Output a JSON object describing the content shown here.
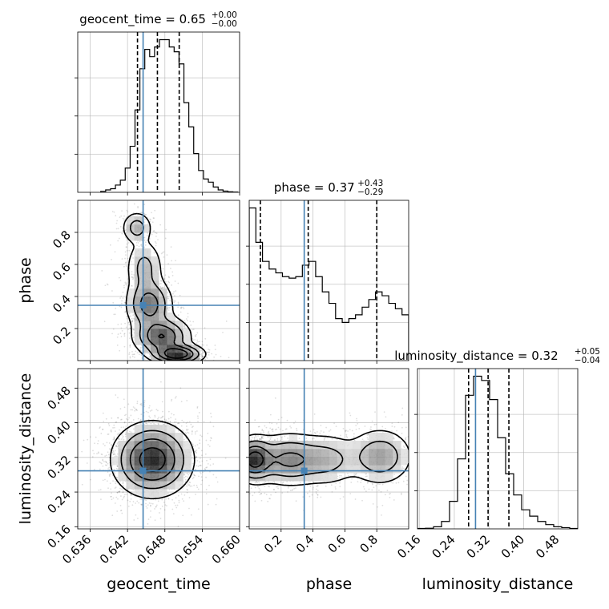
{
  "chart_data": {
    "type": "corner",
    "parameters": [
      {
        "name": "geocent_time",
        "axis_label": "geocent_time",
        "range": [
          0.634,
          0.66
        ],
        "truth": 0.6445,
        "title": {
          "main": "geocent_time = 0.65",
          "sup": "+0.00",
          "sub": "−0.00"
        },
        "quantiles": [
          0.6436,
          0.6468,
          0.6503
        ],
        "ticks": [
          0.636,
          0.642,
          0.648,
          0.654,
          0.66
        ],
        "tick_labels": [
          "0.636",
          "0.642",
          "0.648",
          "0.654",
          "0.660"
        ],
        "hist_edges_range": [
          0.6377,
          0.6597
        ],
        "hist": [
          0.4,
          1.0,
          1.5,
          3.0,
          5.0,
          10.0,
          19.0,
          34.0,
          51.0,
          59.0,
          56.0,
          60.0,
          63.0,
          63.0,
          60.0,
          58.0,
          53.0,
          37.0,
          27.0,
          16.0,
          9.0,
          5.5,
          4.2,
          2.2,
          1.0,
          0.5,
          0.2,
          0.1
        ]
      },
      {
        "name": "phase",
        "axis_label": "phase",
        "range": [
          0.0,
          1.0
        ],
        "truth": 0.345,
        "title": {
          "main": "phase = 0.37",
          "sup": "+0.43",
          "sub": "−0.29"
        },
        "quantiles": [
          0.07,
          0.37,
          0.8
        ],
        "ticks": [
          0.2,
          0.4,
          0.6,
          0.8
        ],
        "tick_labels": [
          "0.2",
          "0.4",
          "0.6",
          "0.8"
        ],
        "hist_edges_range": [
          0.0,
          1.0
        ],
        "hist": [
          2.0,
          1.55,
          1.3,
          1.2,
          1.15,
          1.1,
          1.08,
          1.1,
          1.25,
          1.3,
          1.1,
          0.9,
          0.75,
          0.55,
          0.5,
          0.55,
          0.6,
          0.7,
          0.8,
          0.9,
          0.85,
          0.75,
          0.68,
          0.6
        ]
      },
      {
        "name": "luminosity_distance",
        "axis_label": "luminosity_distance",
        "range": [
          0.155,
          0.525
        ],
        "truth": 0.289,
        "title": {
          "main": "luminosity_distance = 0.32",
          "sup": "+0.05",
          "sub": "−0.04"
        },
        "quantiles": [
          0.273,
          0.318,
          0.366
        ],
        "ticks": [
          0.16,
          0.24,
          0.32,
          0.4,
          0.48
        ],
        "tick_labels": [
          "0.16",
          "0.24",
          "0.32",
          "0.40",
          "0.48"
        ],
        "hist_edges_range": [
          0.155,
          0.525
        ],
        "hist": [
          0.2,
          0.3,
          1.0,
          3.5,
          13.0,
          33.0,
          63.0,
          72.0,
          70.0,
          61.0,
          43.0,
          26.0,
          16.0,
          9.0,
          6.0,
          3.5,
          2.0,
          1.0,
          0.6,
          0.2
        ]
      }
    ],
    "pairs": [
      {
        "x": 0,
        "y": 1,
        "density_blobs": [
          {
            "cx": 0.6435,
            "cy": 0.83,
            "sx": 0.0012,
            "sy": 0.05,
            "w": 0.25
          },
          {
            "cx": 0.6447,
            "cy": 0.58,
            "sx": 0.0015,
            "sy": 0.09,
            "w": 0.22
          },
          {
            "cx": 0.6455,
            "cy": 0.35,
            "sx": 0.0018,
            "sy": 0.08,
            "w": 0.45
          },
          {
            "cx": 0.6475,
            "cy": 0.15,
            "sx": 0.0022,
            "sy": 0.06,
            "w": 0.55
          },
          {
            "cx": 0.65,
            "cy": 0.04,
            "sx": 0.002,
            "sy": 0.03,
            "w": 0.75
          }
        ]
      },
      {
        "x": 0,
        "y": 2,
        "density_blobs": [
          {
            "cx": 0.646,
            "cy": 0.315,
            "sx": 0.003,
            "sy": 0.04,
            "w": 1.0
          }
        ]
      },
      {
        "x": 1,
        "y": 2,
        "density_blobs": [
          {
            "cx": 0.03,
            "cy": 0.315,
            "sx": 0.06,
            "sy": 0.025,
            "w": 0.9
          },
          {
            "cx": 0.25,
            "cy": 0.315,
            "sx": 0.12,
            "sy": 0.03,
            "w": 0.55
          },
          {
            "cx": 0.5,
            "cy": 0.315,
            "sx": 0.1,
            "sy": 0.03,
            "w": 0.3
          },
          {
            "cx": 0.82,
            "cy": 0.322,
            "sx": 0.1,
            "sy": 0.032,
            "w": 0.45
          }
        ]
      }
    ],
    "truth_color": "#4682b4",
    "hist_color": "#000000",
    "grid": true
  }
}
